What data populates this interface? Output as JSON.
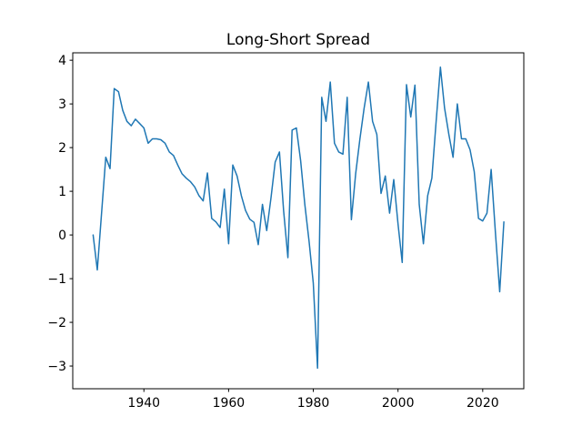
{
  "figure": {
    "background_color": "#ffffff",
    "axes_edge_color": "#000000",
    "tick_color": "#000000"
  },
  "chart_data": {
    "type": "line",
    "title": "Long-Short Spread",
    "xlabel": "",
    "ylabel": "",
    "series_name": "long-short-spread",
    "line_color": "#1f77b4",
    "grid": false,
    "legend_position": "none",
    "xlim": [
      1923.2,
      2029.7
    ],
    "ylim": [
      -3.52,
      4.17
    ],
    "xticks": [
      1940,
      1960,
      1980,
      2000,
      2020
    ],
    "yticks": [
      -3,
      -2,
      -1,
      0,
      1,
      2,
      3,
      4
    ],
    "x": [
      1928,
      1929,
      1930,
      1931,
      1932,
      1933,
      1934,
      1935,
      1936,
      1937,
      1938,
      1939,
      1940,
      1941,
      1942,
      1943,
      1944,
      1945,
      1946,
      1947,
      1948,
      1949,
      1950,
      1951,
      1952,
      1953,
      1954,
      1955,
      1956,
      1957,
      1958,
      1959,
      1960,
      1961,
      1962,
      1963,
      1964,
      1965,
      1966,
      1967,
      1968,
      1969,
      1970,
      1971,
      1972,
      1973,
      1974,
      1975,
      1976,
      1977,
      1978,
      1979,
      1980,
      1981,
      1982,
      1983,
      1984,
      1985,
      1986,
      1987,
      1988,
      1989,
      1990,
      1991,
      1992,
      1993,
      1994,
      1995,
      1996,
      1997,
      1998,
      1999,
      2000,
      2001,
      2002,
      2003,
      2004,
      2005,
      2006,
      2007,
      2008,
      2009,
      2010,
      2011,
      2012,
      2013,
      2014,
      2015,
      2016,
      2017,
      2018,
      2019,
      2020,
      2021,
      2022,
      2023,
      2024,
      2025
    ],
    "values": [
      0.0,
      -0.8,
      0.5,
      1.78,
      1.52,
      3.35,
      3.28,
      2.85,
      2.6,
      2.5,
      2.65,
      2.55,
      2.45,
      2.1,
      2.2,
      2.2,
      2.18,
      2.1,
      1.9,
      1.82,
      1.6,
      1.4,
      1.3,
      1.22,
      1.1,
      0.9,
      0.78,
      1.42,
      0.38,
      0.3,
      0.17,
      1.05,
      -0.2,
      1.6,
      1.35,
      0.9,
      0.56,
      0.36,
      0.29,
      -0.22,
      0.7,
      0.1,
      0.85,
      1.67,
      1.9,
      0.55,
      -0.52,
      2.4,
      2.45,
      1.7,
      0.7,
      -0.15,
      -1.1,
      -3.05,
      3.15,
      2.6,
      3.5,
      2.1,
      1.9,
      1.85,
      3.15,
      0.35,
      1.4,
      2.2,
      2.9,
      3.5,
      2.6,
      2.3,
      0.95,
      1.35,
      0.5,
      1.27,
      0.25,
      -0.63,
      3.44,
      2.7,
      3.43,
      0.7,
      -0.2,
      0.9,
      1.3,
      2.6,
      3.84,
      2.9,
      2.3,
      1.78,
      3.0,
      2.2,
      2.2,
      1.95,
      1.45,
      0.38,
      0.32,
      0.5,
      1.5,
      0.05,
      -1.3,
      0.3
    ]
  }
}
